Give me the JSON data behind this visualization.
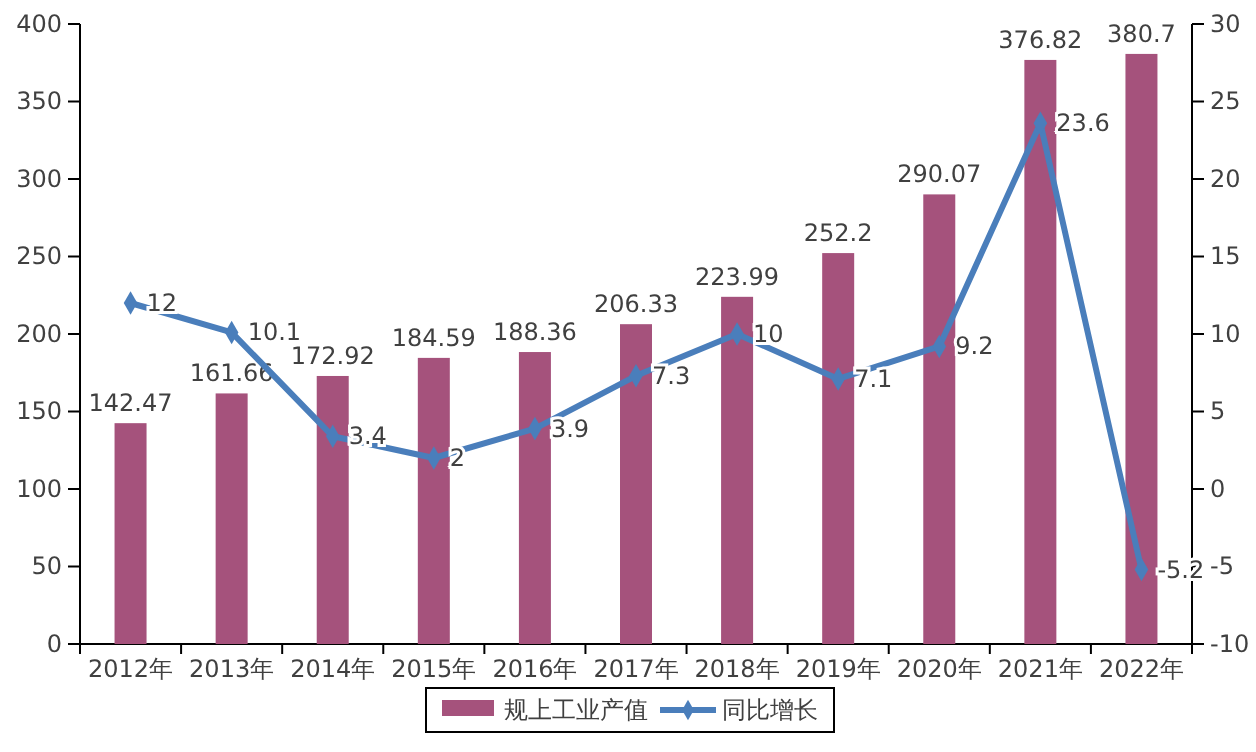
{
  "chart_data": {
    "type": "bar",
    "categories": [
      "2012年",
      "2013年",
      "2014年",
      "2015年",
      "2016年",
      "2017年",
      "2018年",
      "2019年",
      "2020年",
      "2021年",
      "2022年"
    ],
    "series": [
      {
        "name": "规上工业产值",
        "color": "#a5527c",
        "values": [
          142.47,
          161.66,
          172.92,
          184.59,
          188.36,
          206.33,
          223.99,
          252.2,
          290.07,
          376.82,
          380.7
        ]
      },
      {
        "name": "同比增长",
        "type": "line",
        "axis": "y2",
        "color": "#4a7ebb",
        "marker": "diamond",
        "values": [
          12,
          10.1,
          3.4,
          2,
          3.9,
          7.3,
          10,
          7.1,
          9.2,
          23.6,
          -5.2
        ]
      }
    ],
    "ylim": [
      0,
      400
    ],
    "yticks": [
      0,
      50,
      100,
      150,
      200,
      250,
      300,
      350,
      400
    ],
    "y2lim": [
      -10,
      30
    ],
    "y2ticks": [
      -10,
      -5,
      0,
      5,
      10,
      15,
      20,
      25,
      30
    ],
    "data_labels": true,
    "legend": "bottom",
    "grid": false
  }
}
